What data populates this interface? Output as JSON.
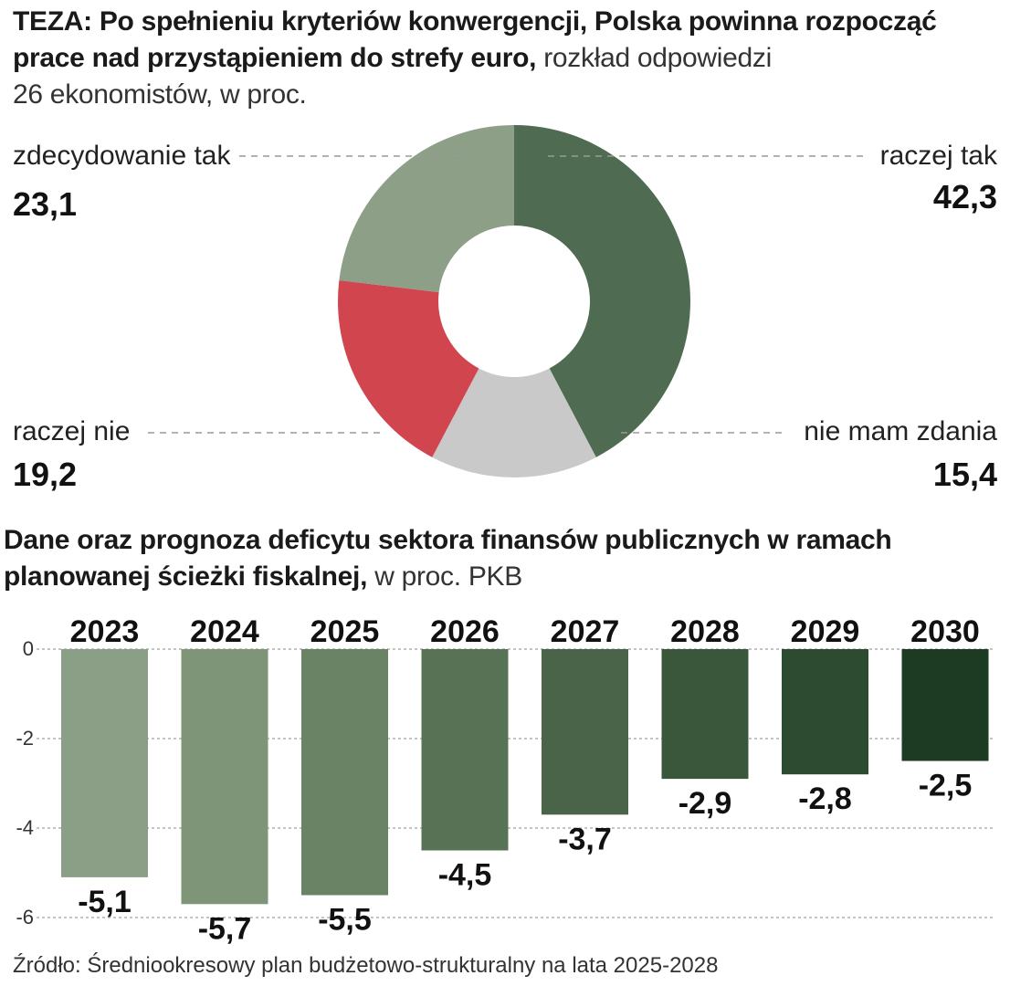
{
  "chart_data": [
    {
      "type": "pie",
      "variant": "donut",
      "title_bold": "TEZA: Po spełnieniu kryteriów konwergencji, Polska powinna rozpocząć prace nad przystąpieniem do strefy euro,",
      "title_rest": "rozkład odpowiedzi",
      "subtitle": "26 ekonomistów, w proc.",
      "slices": [
        {
          "label": "raczej tak",
          "value": 42.3,
          "value_label": "42,3",
          "color": "#4f6b52"
        },
        {
          "label": "nie mam zdania",
          "value": 15.4,
          "value_label": "15,4",
          "color": "#c9c9c9"
        },
        {
          "label": "raczej nie",
          "value": 19.2,
          "value_label": "19,2",
          "color": "#d1454f"
        },
        {
          "label": "zdecydowanie tak",
          "value": 23.1,
          "value_label": "23,1",
          "color": "#8d9f86"
        }
      ]
    },
    {
      "type": "bar",
      "title_bold": "Dane oraz prognoza deficytu sektora finansów publicznych w ramach planowanej ścieżki fiskalnej,",
      "title_rest": "w proc. PKB",
      "categories": [
        "2023",
        "2024",
        "2025",
        "2026",
        "2027",
        "2028",
        "2029",
        "2030"
      ],
      "values": [
        -5.1,
        -5.7,
        -5.5,
        -4.5,
        -3.7,
        -2.9,
        -2.8,
        -2.5
      ],
      "value_labels": [
        "-5,1",
        "-5,7",
        "-5,5",
        "-4,5",
        "-3,7",
        "-2,9",
        "-2,8",
        "-2,5"
      ],
      "y_ticks": [
        0,
        -2,
        -4,
        -6
      ],
      "y_tick_labels": [
        "0",
        "-2",
        "-4",
        "-6"
      ],
      "ylim": [
        -6,
        0
      ],
      "colors": [
        "#8a9f85",
        "#7f9578",
        "#6b8365",
        "#587256",
        "#4a6449",
        "#3a573c",
        "#2d4b30",
        "#1d3b22"
      ]
    }
  ],
  "source": "Źródło: Średniookresowy plan budżetowo-strukturalny na lata 2025-2028"
}
